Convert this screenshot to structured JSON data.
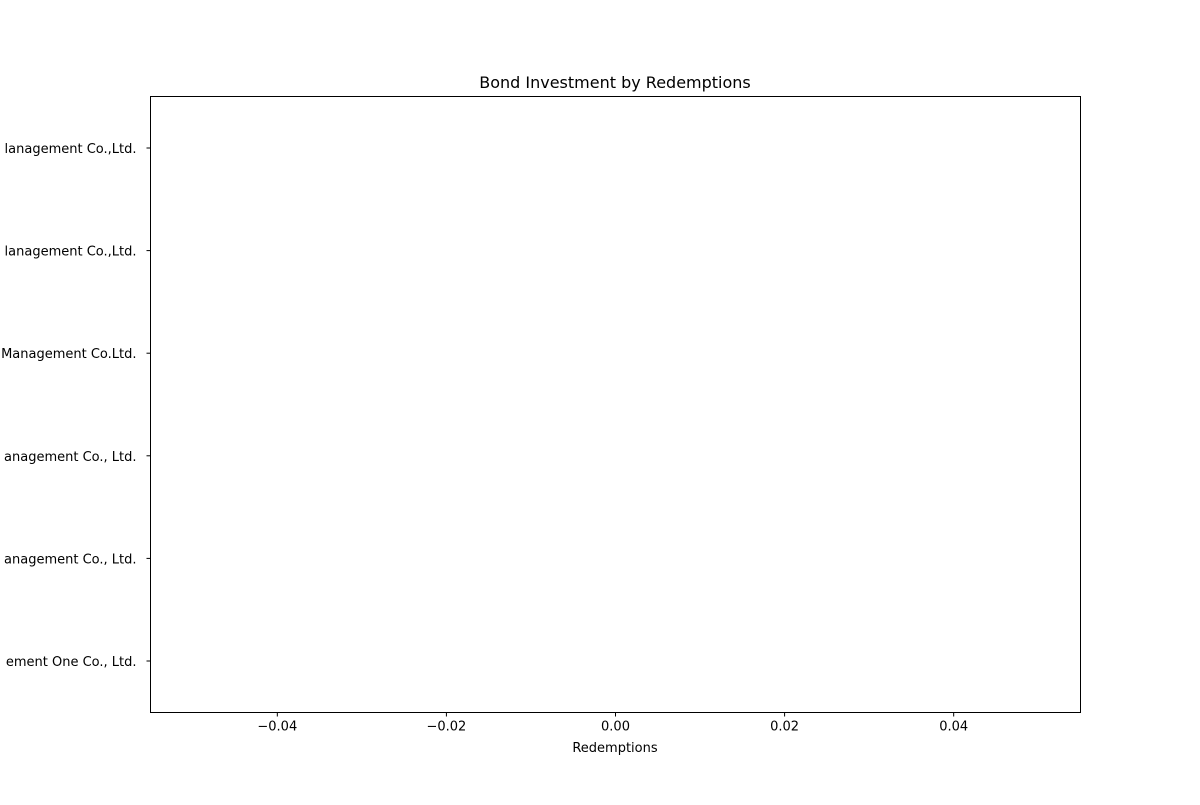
{
  "chart_data": {
    "type": "bar",
    "orientation": "horizontal",
    "title": "Bond Investment by Redemptions",
    "xlabel": "Redemptions",
    "ylabel": "",
    "categories": [
      "ement One Co., Ltd.",
      "anagement Co., Ltd.",
      "anagement Co., Ltd.",
      "Management Co.Ltd.",
      "lanagement Co.,Ltd.",
      "lanagement Co.,Ltd."
    ],
    "values": [
      0,
      0,
      0,
      0,
      0,
      0
    ],
    "xlim": [
      -0.055,
      0.055
    ],
    "xticks": [
      -0.04,
      -0.02,
      0.0,
      0.02,
      0.04
    ],
    "xtick_labels": [
      "−0.04",
      "−0.02",
      "0.00",
      "0.02",
      "0.04"
    ],
    "grid": false,
    "legend": "none",
    "colors": {
      "axis": "#000000",
      "background": "#ffffff"
    }
  }
}
